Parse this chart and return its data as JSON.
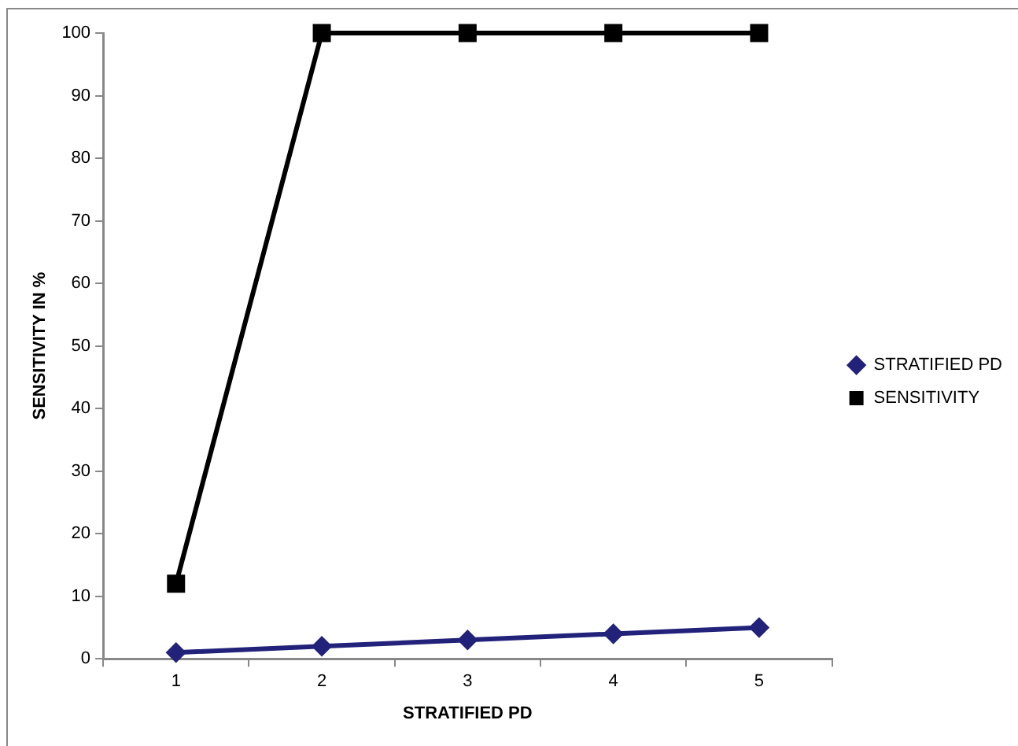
{
  "chart_data": {
    "type": "line",
    "xlabel": "STRATIFIED PD",
    "ylabel": "SENSITIVITY IN %",
    "categories": [
      "1",
      "2",
      "3",
      "4",
      "5"
    ],
    "series": [
      {
        "name": "STRATIFIED PD",
        "color": "#22227a",
        "marker": "diamond",
        "values": [
          1,
          2,
          3,
          4,
          5
        ]
      },
      {
        "name": "SENSITIVITY",
        "color": "#000000",
        "marker": "square",
        "values": [
          12,
          100,
          100,
          100,
          100
        ]
      }
    ],
    "ylim": [
      0,
      100
    ],
    "yticks": [
      0,
      10,
      20,
      30,
      40,
      50,
      60,
      70,
      80,
      90,
      100
    ],
    "grid": false,
    "legend": "right",
    "line_style": "solid"
  }
}
